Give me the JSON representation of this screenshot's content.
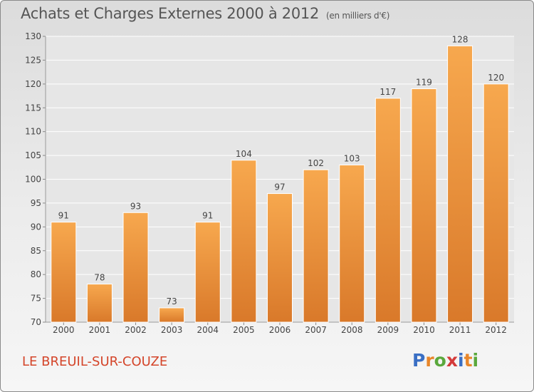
{
  "header": {
    "title": "Achats et Charges Externes 2000 à 2012",
    "subtitle": "(en milliers d'€)"
  },
  "footer": {
    "commune": "LE BREUIL-SUR-COUZE",
    "logo_letters": [
      "P",
      "r",
      "o",
      "x",
      "i",
      "t",
      "i"
    ],
    "logo_colors": [
      "#3a6fc4",
      "#e8862a",
      "#5aa83c",
      "#d43a3a",
      "#3a6fc4",
      "#e8862a",
      "#5aa83c"
    ]
  },
  "chart_data": {
    "type": "bar",
    "title": "Achats et Charges Externes 2000 à 2012",
    "subtitle": "(en milliers d'€)",
    "categories": [
      "2000",
      "2001",
      "2002",
      "2003",
      "2004",
      "2005",
      "2006",
      "2007",
      "2008",
      "2009",
      "2010",
      "2011",
      "2012"
    ],
    "values": [
      91,
      78,
      93,
      73,
      91,
      104,
      97,
      102,
      103,
      117,
      119,
      128,
      120
    ],
    "ylim": [
      70,
      130
    ],
    "yticks": [
      70,
      75,
      80,
      85,
      90,
      95,
      100,
      105,
      110,
      115,
      120,
      125,
      130
    ],
    "grid": true,
    "bar_color_top": "#f7a84e",
    "bar_color_bottom": "#d9792a"
  }
}
